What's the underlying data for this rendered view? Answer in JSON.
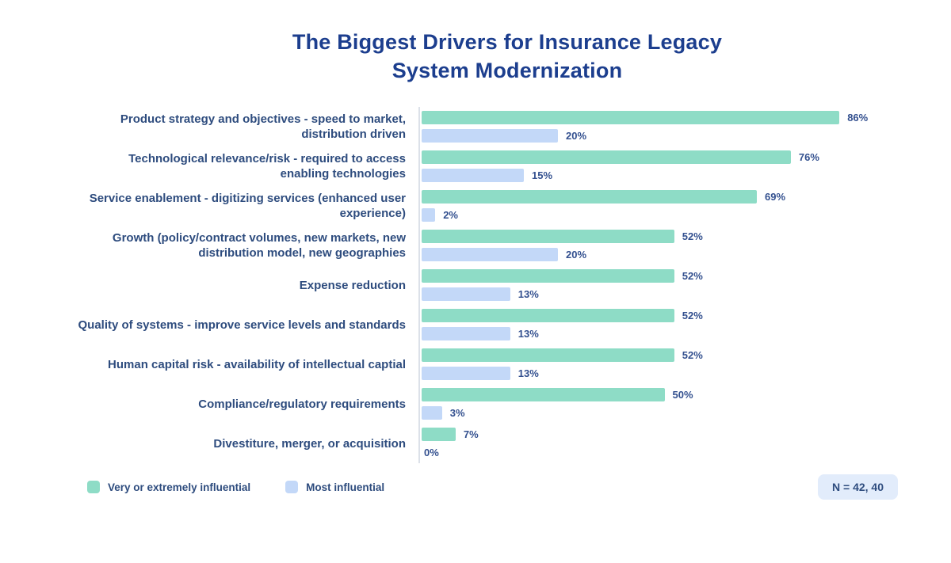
{
  "title": {
    "line1": "The Biggest Drivers for Insurance Legacy",
    "line2": "System Modernization"
  },
  "chart_data": {
    "type": "bar",
    "orientation": "horizontal",
    "value_suffix": "%",
    "grid": false,
    "legend_position": "bottom-left",
    "axis_baseline_color": "#DCE1E9",
    "categories": [
      "Product strategy and objectives - speed to market, distribution driven",
      "Technological relevance/risk - required to access enabling technologies",
      "Service enablement - digitizing services (enhanced user experience)",
      "Growth (policy/contract volumes, new markets, new distribution model, new geographies",
      "Expense reduction",
      "Quality of systems - improve service levels and standards",
      "Human capital risk - availability of intellectual captial",
      "Compliance/regulatory requirements",
      "Divestiture, merger, or acquisition"
    ],
    "series": [
      {
        "name": "Very or extremely influential",
        "color": "#8EDCC6",
        "values": [
          86,
          76,
          69,
          52,
          52,
          52,
          52,
          50,
          7
        ]
      },
      {
        "name": "Most influential",
        "color": "#C3D8F8",
        "values": [
          20,
          15,
          2,
          20,
          13,
          13,
          13,
          3,
          0
        ]
      }
    ],
    "sample_note": "N = 42, 40"
  },
  "colors": {
    "title": "#1C3E8E",
    "category_label": "#2E4C7E",
    "value_label": "#33508F",
    "badge_background": "#E2ECFB"
  }
}
